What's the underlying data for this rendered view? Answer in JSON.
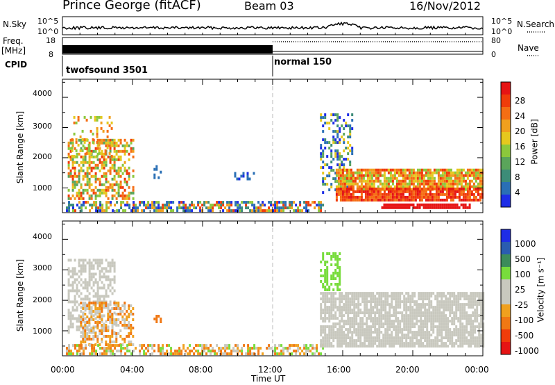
{
  "header": {
    "title": "Prince George (fitACF)",
    "beam": "Beam 03",
    "date": "16/Nov/2012"
  },
  "summary_panels": {
    "nsky_label": "N.Sky",
    "nsky_ticks": [
      "10^5",
      "10^0"
    ],
    "nsearch_label": "N.Search",
    "nsearch_ticks": [
      "10^5",
      "10^0"
    ],
    "freq_label_line1": "Freq.",
    "freq_label_line2": "[MHz]",
    "freq_ticks": [
      "18",
      "8"
    ],
    "nave_label": "Nave",
    "nave_ticks": [
      "80",
      "0"
    ],
    "cpid_label": "CPID",
    "cpid_segments": [
      {
        "name": "twofsound 3501",
        "start_hour": 0,
        "end_hour": 12
      },
      {
        "name": "normal 150",
        "start_hour": 12,
        "end_hour": 24
      }
    ]
  },
  "chart_data": [
    {
      "type": "heatmap",
      "panel": "power",
      "ylabel": "Slant Range [km]",
      "y_ticks": [
        1000,
        2000,
        3000,
        4000
      ],
      "ylim": [
        180,
        4600
      ],
      "xlim": [
        0,
        24
      ],
      "x_ticks": [
        "00:00",
        "04:00",
        "08:00",
        "12:00",
        "16:00",
        "20:00",
        "00:00"
      ],
      "colorbar": {
        "label": "Power [dB]",
        "ticks": [
          "4",
          "8",
          "12",
          "16",
          "20",
          "24",
          "28"
        ],
        "colors": [
          "#1e2de6",
          "#2a6fb5",
          "#3c8c78",
          "#5aa55a",
          "#8cc83c",
          "#e6c81e",
          "#f0a01e",
          "#f56e14",
          "#f03c0a",
          "#e61414"
        ]
      },
      "regions": [
        {
          "x": [
            0.3,
            4.0
          ],
          "y": [
            600,
            2600
          ],
          "levels": [
            3,
            4,
            5,
            6,
            7,
            8
          ],
          "density": 0.55
        },
        {
          "x": [
            0.5,
            2.8
          ],
          "y": [
            2000,
            3300
          ],
          "levels": [
            4,
            5,
            6,
            7
          ],
          "density": 0.25
        },
        {
          "x": [
            0.2,
            14.9
          ],
          "y": [
            200,
            480
          ],
          "levels": [
            0,
            1,
            2,
            4,
            6,
            8
          ],
          "density": 0.6
        },
        {
          "x": [
            14.7,
            16.5
          ],
          "y": [
            800,
            3400
          ],
          "levels": [
            0,
            1,
            2,
            3,
            5
          ],
          "density": 0.35
        },
        {
          "x": [
            15.6,
            24
          ],
          "y": [
            900,
            1600
          ],
          "levels": [
            4,
            5,
            6,
            7,
            8
          ],
          "density": 0.85
        },
        {
          "x": [
            15.6,
            24
          ],
          "y": [
            550,
            950
          ],
          "levels": [
            7,
            8,
            9
          ],
          "density": 0.9
        },
        {
          "x": [
            18.2,
            23.2
          ],
          "y": [
            300,
            480
          ],
          "levels": [
            9
          ],
          "density": 0.9
        },
        {
          "x": [
            5.2,
            5.6
          ],
          "y": [
            1200,
            1700
          ],
          "levels": [
            1,
            2
          ],
          "density": 0.4
        },
        {
          "x": [
            9.8,
            11.0
          ],
          "y": [
            1250,
            1450
          ],
          "levels": [
            0,
            1
          ],
          "density": 0.4
        }
      ]
    },
    {
      "type": "heatmap",
      "panel": "velocity",
      "ylabel": "Slant Range [km]",
      "y_ticks": [
        1000,
        2000,
        3000,
        4000
      ],
      "ylim": [
        180,
        4600
      ],
      "xlim": [
        0,
        24
      ],
      "x_ticks": [
        "00:00",
        "04:00",
        "08:00",
        "12:00",
        "16:00",
        "20:00",
        "00:00"
      ],
      "xlabel": "Time UT",
      "colorbar": {
        "label": "Velocity [m s⁻¹]",
        "ticks": [
          "1000",
          "500",
          "100",
          "25",
          "-25",
          "-100",
          "-500",
          "-1000"
        ],
        "colors": [
          "#1e2de6",
          "#2a5cb0",
          "#3c8c5a",
          "#78dc3c",
          "#c8c8be",
          "#c8c8be",
          "#f0a01e",
          "#f07814",
          "#f03c0a",
          "#e61414"
        ]
      },
      "regions": [
        {
          "x": [
            0.3,
            3.0
          ],
          "y": [
            900,
            3300
          ],
          "levels": [
            4,
            5
          ],
          "density": 0.55
        },
        {
          "x": [
            1.0,
            4.0
          ],
          "y": [
            500,
            1900
          ],
          "levels": [
            6,
            7,
            5
          ],
          "density": 0.5
        },
        {
          "x": [
            0.2,
            14.9
          ],
          "y": [
            200,
            480
          ],
          "levels": [
            6,
            7,
            4,
            3
          ],
          "density": 0.55
        },
        {
          "x": [
            14.7,
            15.8
          ],
          "y": [
            2300,
            3500
          ],
          "levels": [
            3
          ],
          "density": 0.45
        },
        {
          "x": [
            14.7,
            24
          ],
          "y": [
            450,
            2200
          ],
          "levels": [
            4,
            5
          ],
          "density": 0.8
        },
        {
          "x": [
            5.2,
            5.6
          ],
          "y": [
            1250,
            1500
          ],
          "levels": [
            7
          ],
          "density": 0.6
        }
      ]
    }
  ]
}
